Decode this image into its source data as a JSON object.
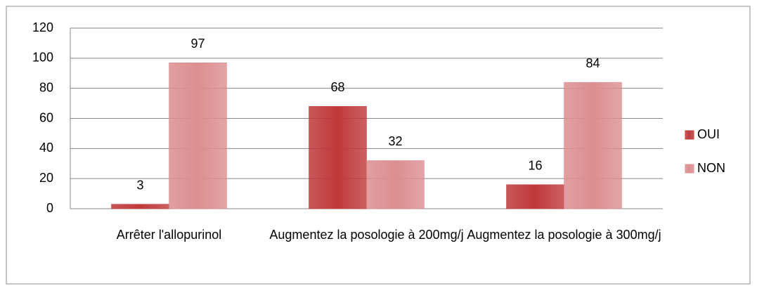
{
  "chart_data": {
    "type": "bar",
    "categories": [
      "Arrêter l'allopurinol",
      "Augmentez la posologie à 200mg/j",
      "Augmentez la posologie à 300mg/j"
    ],
    "series": [
      {
        "name": "OUI",
        "color": "#c0393b",
        "values": [
          3,
          68,
          16
        ]
      },
      {
        "name": "NON",
        "color": "#dc8e91",
        "values": [
          97,
          32,
          84
        ]
      }
    ],
    "ylim": [
      0,
      120
    ],
    "yticks": [
      0,
      20,
      40,
      60,
      80,
      100,
      120
    ],
    "grid": true,
    "legend": "right"
  }
}
